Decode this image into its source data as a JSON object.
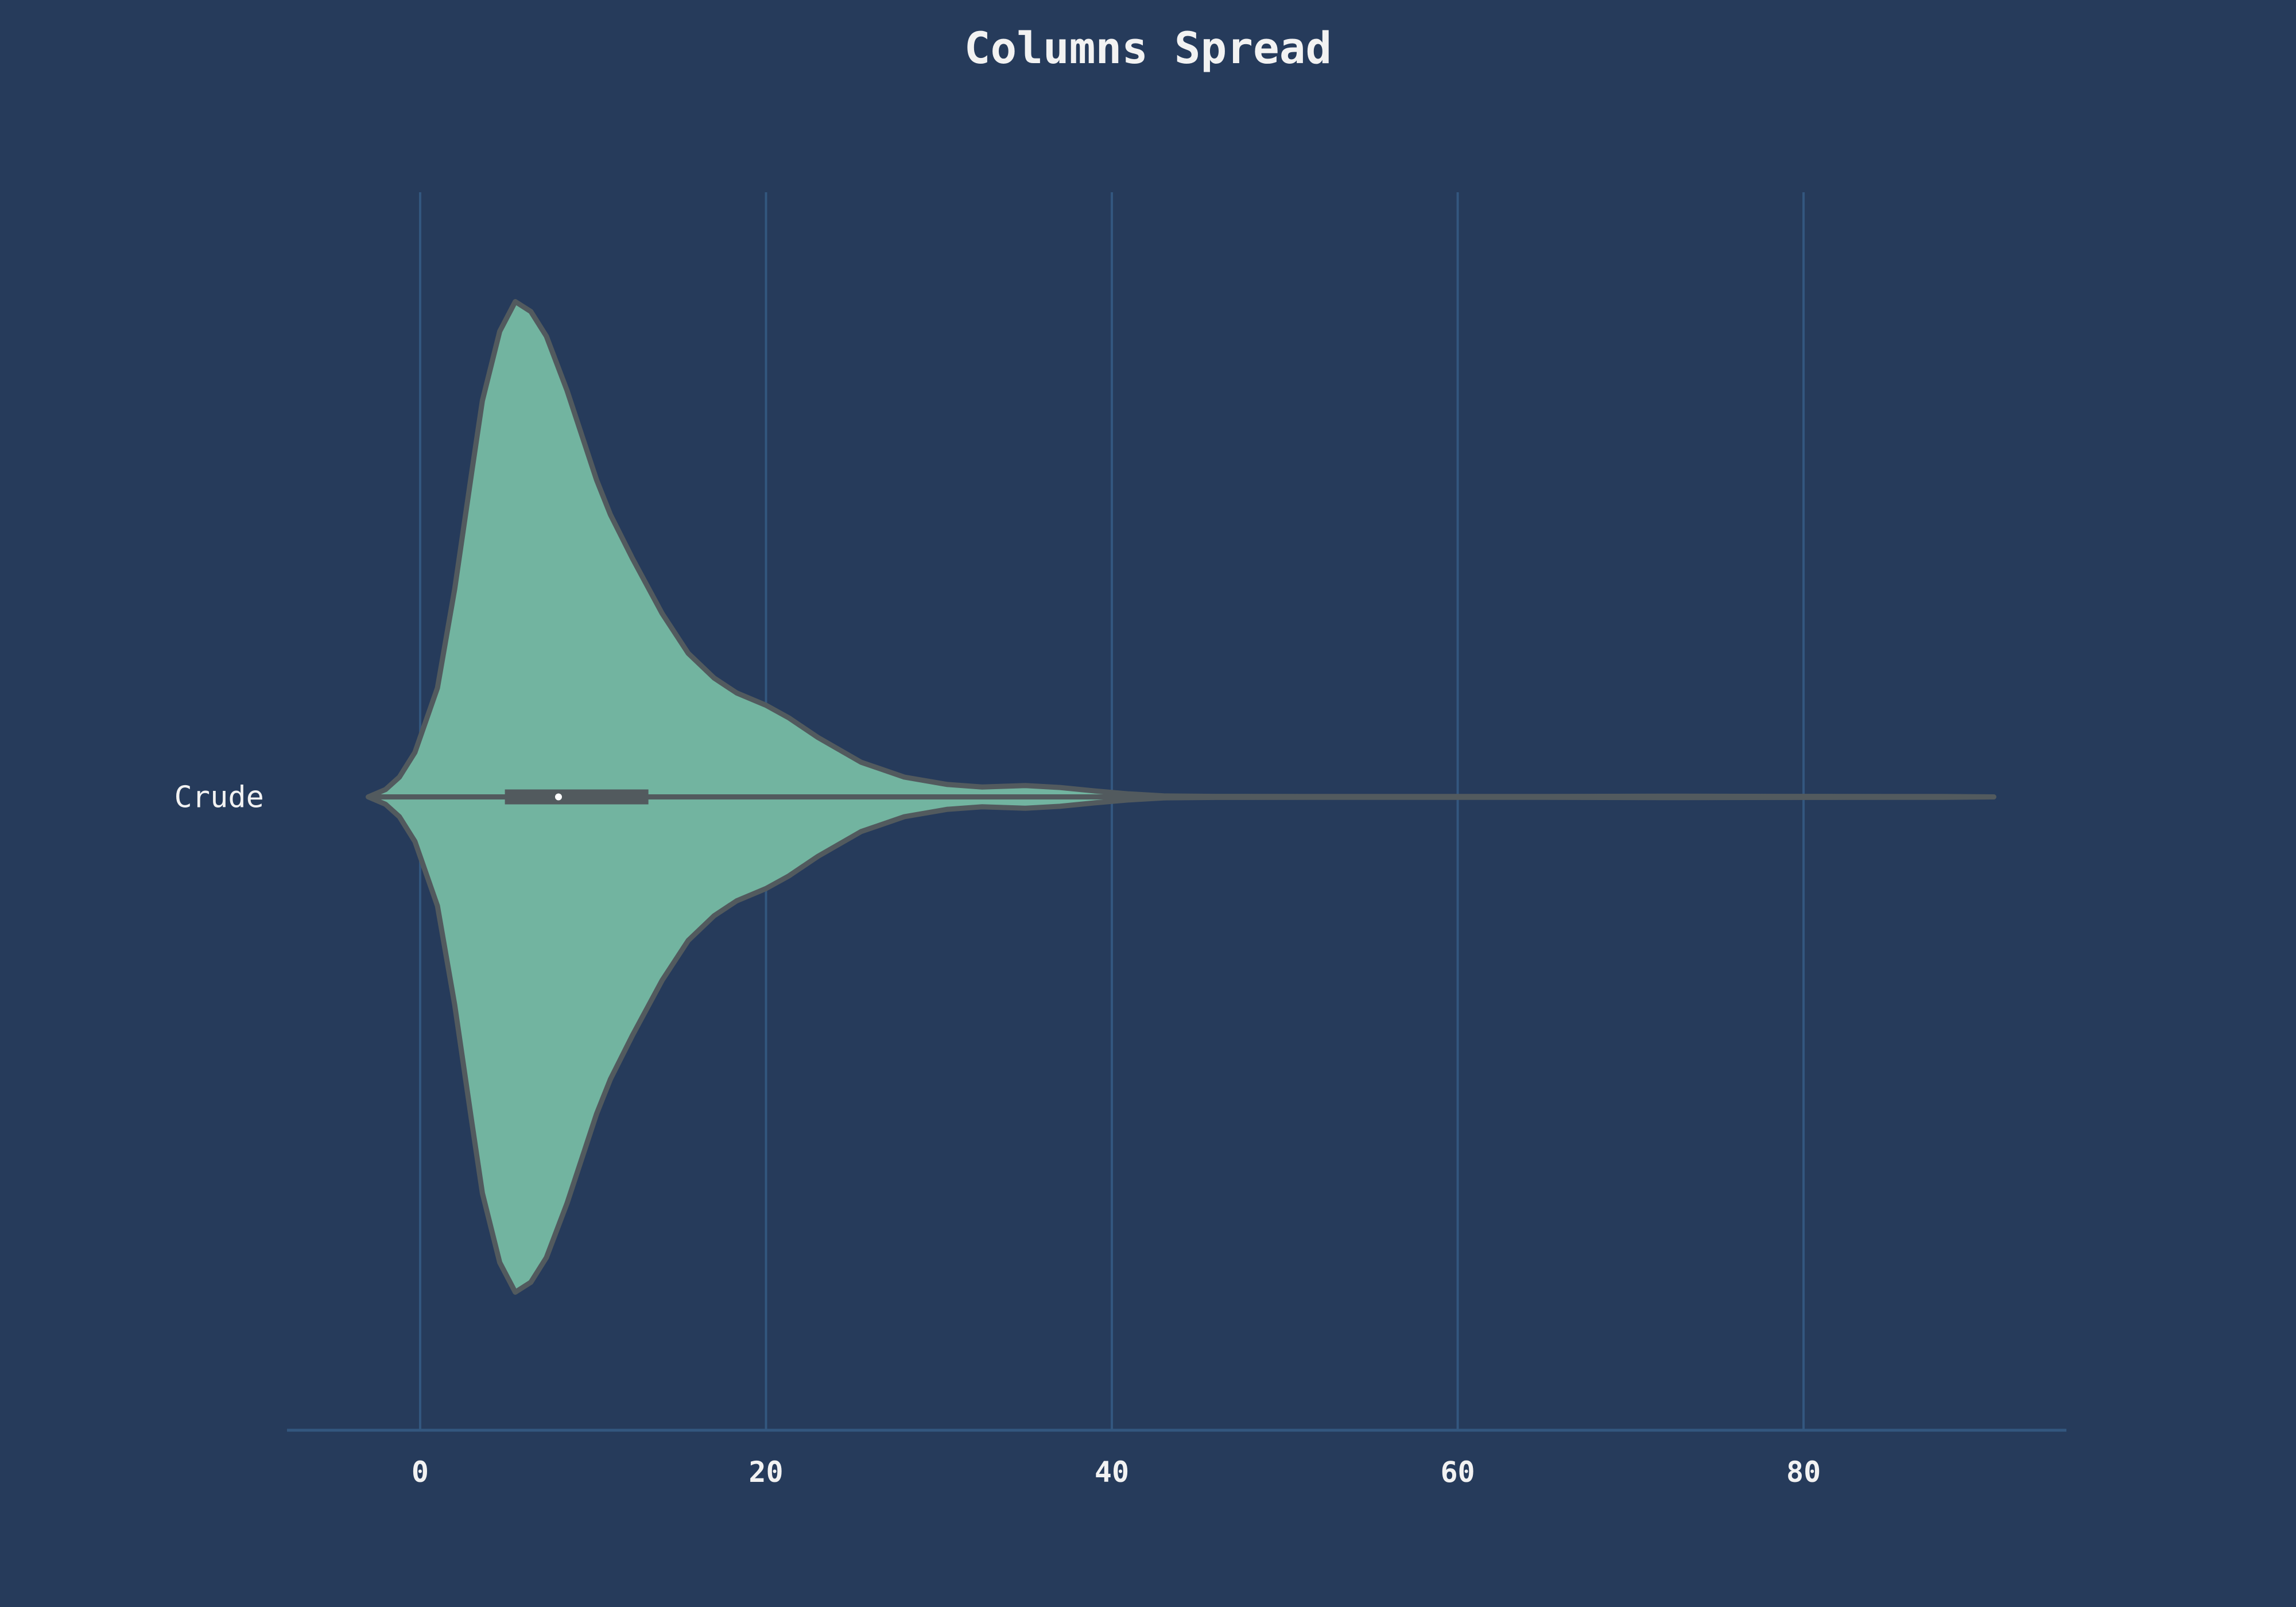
{
  "chart_data": {
    "type": "violin",
    "title": "Columns Spread",
    "xlabel": "",
    "ylabel": "",
    "orientation": "horizontal",
    "x_ticks": [
      0,
      20,
      40,
      60,
      80
    ],
    "xlim": [
      -7.7,
      95.2
    ],
    "grid": "vertical",
    "colors": {
      "background": "#263b5b",
      "grid": "#33577f",
      "violin_fill": "#72b4a0",
      "violin_edge": "#525a5e",
      "text": "#f2f2f2"
    },
    "series": [
      {
        "name": "Crude",
        "box": {
          "whisker_low": 0.5,
          "q1": 4.9,
          "median": 8.0,
          "q3": 13.2,
          "whisker_high": 24.4
        },
        "data_min": -3.0,
        "data_max": 91.0,
        "density": [
          [
            -3.0,
            0.0
          ],
          [
            -2.0,
            0.015
          ],
          [
            -1.2,
            0.04
          ],
          [
            -0.3,
            0.09
          ],
          [
            1.0,
            0.22
          ],
          [
            2.0,
            0.42
          ],
          [
            3.0,
            0.66
          ],
          [
            3.6,
            0.8
          ],
          [
            4.6,
            0.94
          ],
          [
            5.5,
            1.0
          ],
          [
            6.4,
            0.98
          ],
          [
            7.3,
            0.93
          ],
          [
            8.5,
            0.82
          ],
          [
            10.2,
            0.64
          ],
          [
            11.0,
            0.57
          ],
          [
            12.3,
            0.48
          ],
          [
            14.0,
            0.37
          ],
          [
            15.5,
            0.29
          ],
          [
            17.0,
            0.24
          ],
          [
            18.3,
            0.21
          ],
          [
            20.0,
            0.185
          ],
          [
            21.3,
            0.16
          ],
          [
            23.0,
            0.12
          ],
          [
            25.5,
            0.07
          ],
          [
            28.0,
            0.04
          ],
          [
            30.5,
            0.025
          ],
          [
            32.5,
            0.02
          ],
          [
            35.0,
            0.023
          ],
          [
            37.0,
            0.019
          ],
          [
            39.0,
            0.012
          ],
          [
            41.0,
            0.006
          ],
          [
            43.0,
            0.002
          ],
          [
            46.0,
            0.001
          ],
          [
            55.0,
            0.0008
          ],
          [
            65.0,
            0.0008
          ],
          [
            72.0,
            0.0015
          ],
          [
            80.0,
            0.001
          ],
          [
            88.0,
            0.0008
          ],
          [
            91.0,
            0.0
          ]
        ]
      }
    ]
  }
}
